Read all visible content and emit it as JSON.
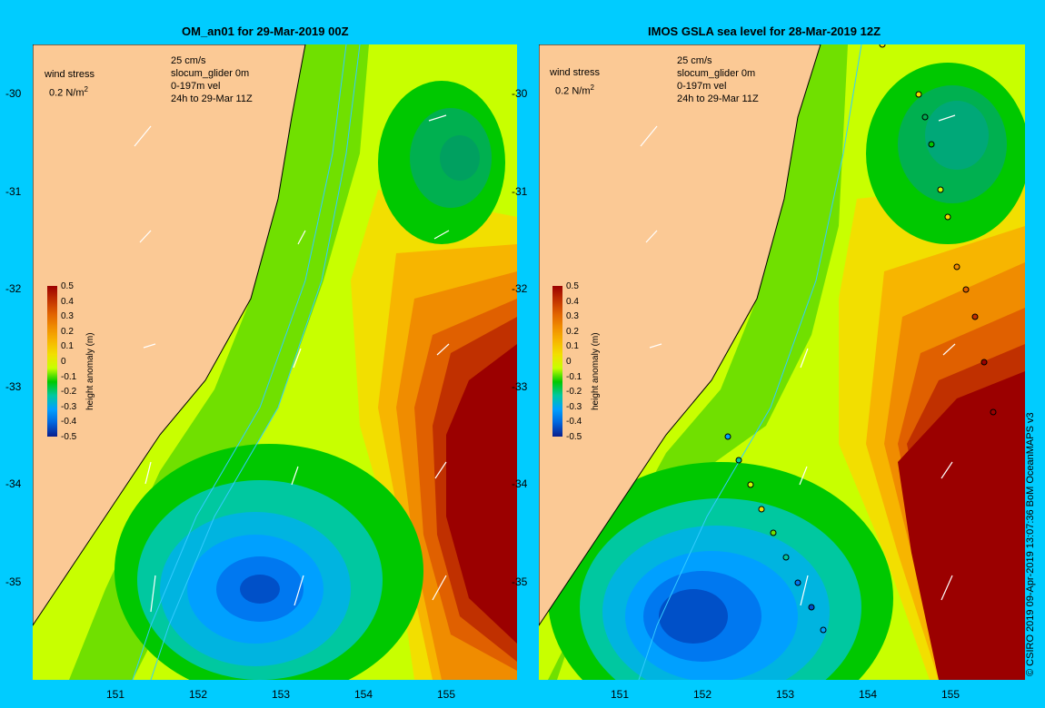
{
  "panels": [
    {
      "title": "OM_an01 for 29-Mar-2019 00Z"
    },
    {
      "title": "IMOS GSLA sea level  for 28-Mar-2019 12Z"
    }
  ],
  "axes": {
    "lat_ticks": [
      "-30",
      "-31",
      "-32",
      "-33",
      "-34",
      "-35"
    ],
    "lon_ticks": [
      "151",
      "152",
      "153",
      "154",
      "155"
    ]
  },
  "legend": {
    "wind_label": "wind stress",
    "wind_scale": "0.2 N/m",
    "wind_exp": "2",
    "vel_scale": "25 cm/s",
    "glider": "slocum_glider 0m",
    "depth_vel": "0-197m vel",
    "period": "24h to 29-Mar 11Z"
  },
  "colorbar": {
    "title": "height anomaly (m)",
    "labels": [
      "0.5",
      "0.4",
      "0.3",
      "0.2",
      "0.1",
      "0",
      "-0.1",
      "-0.2",
      "-0.3",
      "-0.4",
      "-0.5"
    ],
    "colors": [
      "#9b0000",
      "#c03000",
      "#e06000",
      "#f08c00",
      "#f7b500",
      "#f2df00",
      "#c8ff00",
      "#00c800",
      "#00c8a0",
      "#00a0ff",
      "#0064dc",
      "#0a1e8c"
    ]
  },
  "credit": "© CSIRO 2019   09-Apr-2019 13:07:36 BoM OceanMAPS v3"
}
